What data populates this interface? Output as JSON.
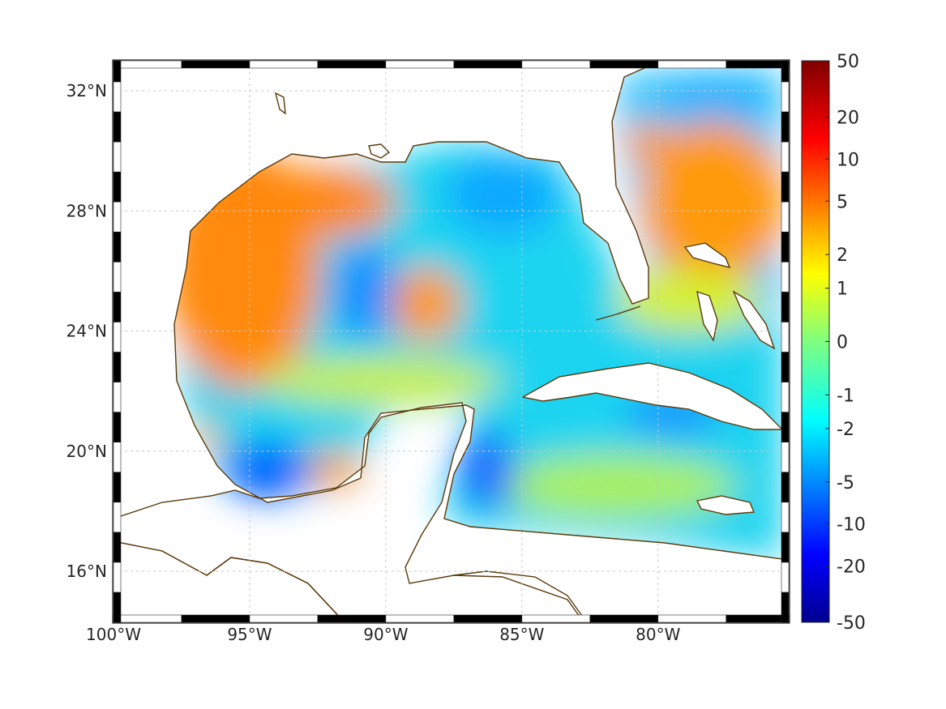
{
  "map": {
    "lon_range": [
      -100,
      -75.2
    ],
    "lat_range": [
      14.3,
      33
    ],
    "lon_ticks": [
      {
        "value": -100,
        "label": "100°W"
      },
      {
        "value": -95,
        "label": "95°W"
      },
      {
        "value": -90,
        "label": "90°W"
      },
      {
        "value": -85,
        "label": "85°W"
      },
      {
        "value": -80,
        "label": "80°W"
      }
    ],
    "lat_ticks": [
      {
        "value": 16,
        "label": "16°N"
      },
      {
        "value": 20,
        "label": "20°N"
      },
      {
        "value": 24,
        "label": "24°N"
      },
      {
        "value": 28,
        "label": "28°N"
      },
      {
        "value": 32,
        "label": "32°N"
      }
    ],
    "grid": true,
    "coastline_color": "#5a3a0a",
    "frame_style": "alternating black/white border"
  },
  "colorbar": {
    "placement": "right",
    "colormap": "jet",
    "labels": [
      "50",
      "20",
      "10",
      "5",
      "2",
      "1",
      "0",
      "-1",
      "-2",
      "-5",
      "-10",
      "-20",
      "-50"
    ],
    "label_positions": [
      1.0,
      0.9,
      0.825,
      0.75,
      0.655,
      0.595,
      0.5,
      0.405,
      0.345,
      0.25,
      0.175,
      0.1,
      0.0
    ]
  },
  "field": {
    "warm_regions": [
      {
        "name": "western gulf",
        "value": 5
      },
      {
        "name": "loop current eddy",
        "value": 5
      },
      {
        "name": "bay of campeche patch",
        "value": 4
      },
      {
        "name": "atlantic east of florida",
        "value": 4
      }
    ],
    "cool_regions": [
      {
        "name": "central gulf",
        "value": -2
      },
      {
        "name": "southwest gulf",
        "value": -4
      },
      {
        "name": "yucatan channel",
        "value": -4
      },
      {
        "name": "caribbean",
        "value": -2
      }
    ]
  }
}
